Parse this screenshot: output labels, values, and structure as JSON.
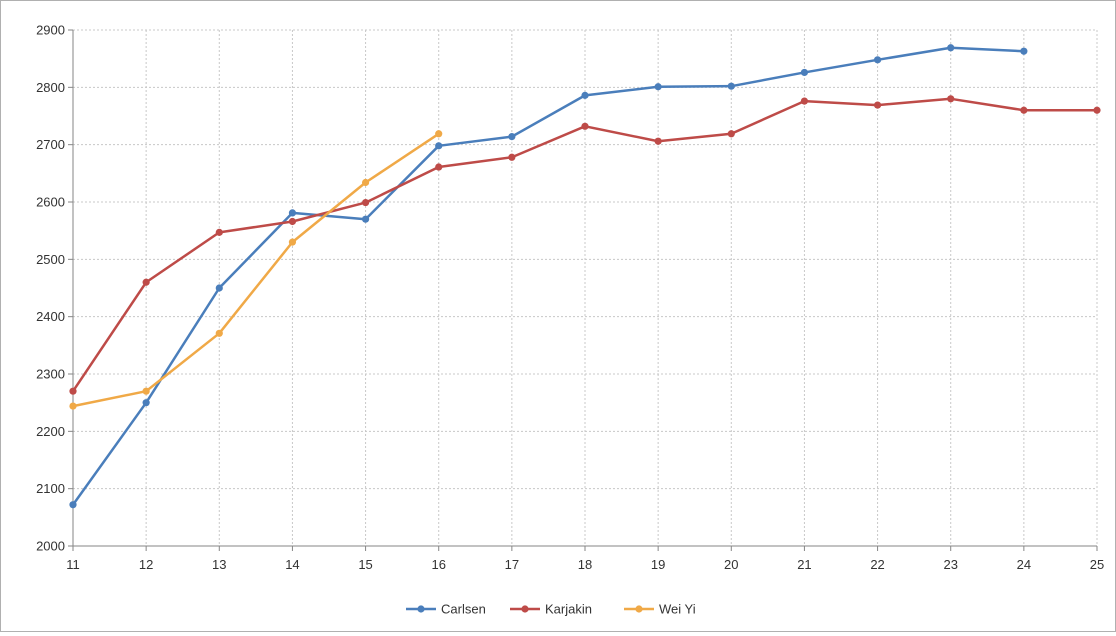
{
  "chart_data": {
    "type": "line",
    "title": "",
    "xlabel": "",
    "ylabel": "",
    "x": [
      11,
      12,
      13,
      14,
      15,
      16,
      17,
      18,
      19,
      20,
      21,
      22,
      23,
      24,
      25
    ],
    "xlim": [
      11,
      25
    ],
    "ylim": [
      2000,
      2900
    ],
    "yticks": [
      2000,
      2100,
      2200,
      2300,
      2400,
      2500,
      2600,
      2700,
      2800,
      2900
    ],
    "xticks": [
      11,
      12,
      13,
      14,
      15,
      16,
      17,
      18,
      19,
      20,
      21,
      22,
      23,
      24,
      25
    ],
    "grid": true,
    "legend_position": "bottom",
    "series": [
      {
        "name": "Carlsen",
        "color": "#4a7ebb",
        "values": [
          2072,
          2250,
          2450,
          2581,
          2570,
          2698,
          2714,
          2786,
          2801,
          2802,
          2826,
          2848,
          2869,
          2863,
          null
        ]
      },
      {
        "name": "Karjakin",
        "color": "#be4b48",
        "values": [
          2270,
          2460,
          2547,
          2566,
          2599,
          2661,
          2678,
          2732,
          2706,
          2719,
          2776,
          2769,
          2780,
          2760,
          2760
        ]
      },
      {
        "name": "Wei Yi",
        "color": "#f0a947",
        "values": [
          2244,
          2270,
          2371,
          2530,
          2634,
          2719,
          null,
          null,
          null,
          null,
          null,
          null,
          null,
          null,
          null
        ]
      }
    ]
  }
}
